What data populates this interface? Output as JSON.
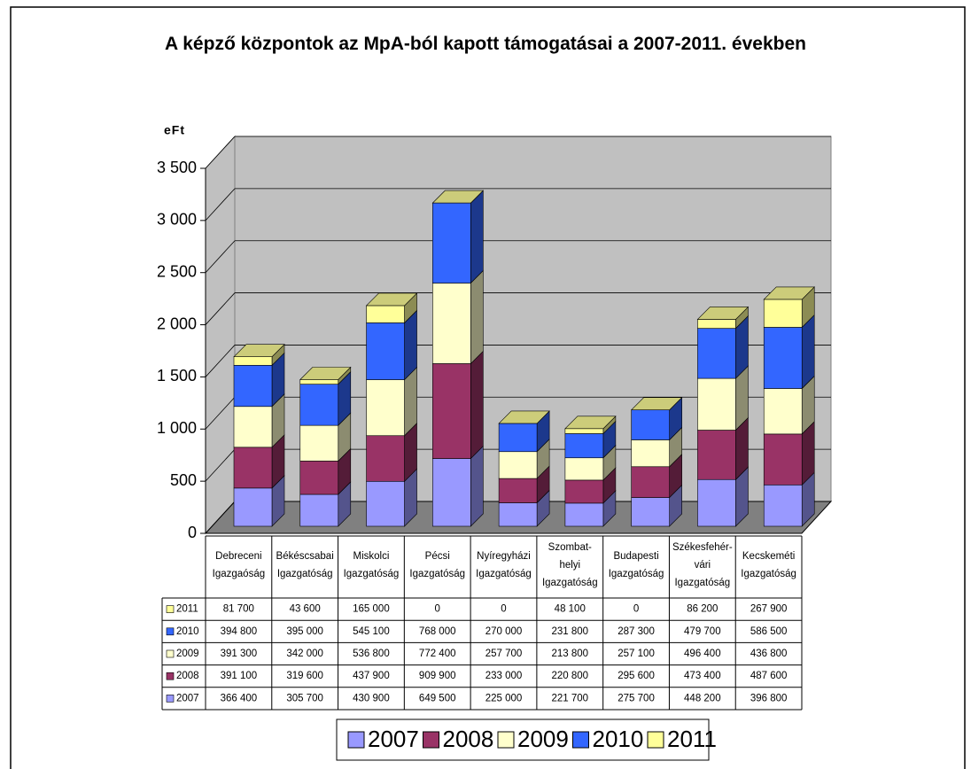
{
  "chart_data": {
    "type": "bar3d_stacked",
    "title": "A képző központok az MpA-ból kapott támogatásai a 2007-2011. években",
    "y_label": "eFt",
    "categories": [
      [
        "Debreceni",
        "Igazgaóság"
      ],
      [
        "Békéscsabai",
        "Igazgatóság"
      ],
      [
        "Miskolci",
        "Igazgatóság"
      ],
      [
        "Pécsi",
        "Igazgatóság"
      ],
      [
        "Nyíregyházi",
        "Igazgatóság"
      ],
      [
        "Szombat-",
        "helyi",
        "Igazgatóság"
      ],
      [
        "Budapesti",
        "Igazgatóság"
      ],
      [
        "Székesfehér-",
        "vári",
        "Igazgatóság"
      ],
      [
        "Kecskeméti",
        "Igazgatóság"
      ]
    ],
    "series": [
      {
        "name": "2007",
        "color": "#9999ff",
        "values": [
          366.4,
          305.7,
          430.9,
          649.5,
          225,
          221.7,
          275.7,
          448.2,
          396.8
        ],
        "value_labels": [
          "366 400",
          "305 700",
          "430 900",
          "649 500",
          "225 000",
          "221 700",
          "275 700",
          "448 200",
          "396 800"
        ]
      },
      {
        "name": "2008",
        "color": "#993366",
        "values": [
          391.1,
          319.6,
          437.9,
          909.9,
          233,
          220.8,
          295.6,
          473.4,
          487.6
        ],
        "value_labels": [
          "391 100",
          "319 600",
          "437 900",
          "909 900",
          "233 000",
          "220 800",
          "295 600",
          "473 400",
          "487 600"
        ]
      },
      {
        "name": "2009",
        "color": "#ffffcc",
        "values": [
          391.3,
          342,
          536.8,
          772.4,
          257.7,
          213.8,
          257.1,
          496.4,
          436.8
        ],
        "value_labels": [
          "391 300",
          "342 000",
          "536 800",
          "772 400",
          "257 700",
          "213 800",
          "257 100",
          "496 400",
          "436 800"
        ]
      },
      {
        "name": "2010",
        "color": "#3366ff",
        "values": [
          394.8,
          395,
          545.1,
          768,
          270,
          231.8,
          287.3,
          479.7,
          586.5
        ],
        "value_labels": [
          "394 800",
          "395 000",
          "545 100",
          "768 000",
          "270 000",
          "231 800",
          "287 300",
          "479 700",
          "586 500"
        ]
      },
      {
        "name": "2011",
        "color": "#ffff99",
        "values": [
          81.7,
          43.6,
          165,
          0,
          0,
          48.1,
          0,
          86.2,
          267.9
        ],
        "value_labels": [
          "81 700",
          "43 600",
          "165 000",
          "0",
          "0",
          "48 100",
          "0",
          "86 200",
          "267 900"
        ]
      }
    ],
    "ylim": [
      0,
      3500
    ],
    "yticks": [
      0,
      500,
      {
        "value": 1000,
        "label": "1 000"
      },
      {
        "value": 1500,
        "label": "1 500"
      },
      {
        "value": 2000,
        "label": "2 000"
      },
      {
        "value": 2500,
        "label": "2 500"
      },
      {
        "value": 3000,
        "label": "3 000"
      },
      {
        "value": 3500,
        "label": "3 500"
      }
    ],
    "grid": true
  }
}
